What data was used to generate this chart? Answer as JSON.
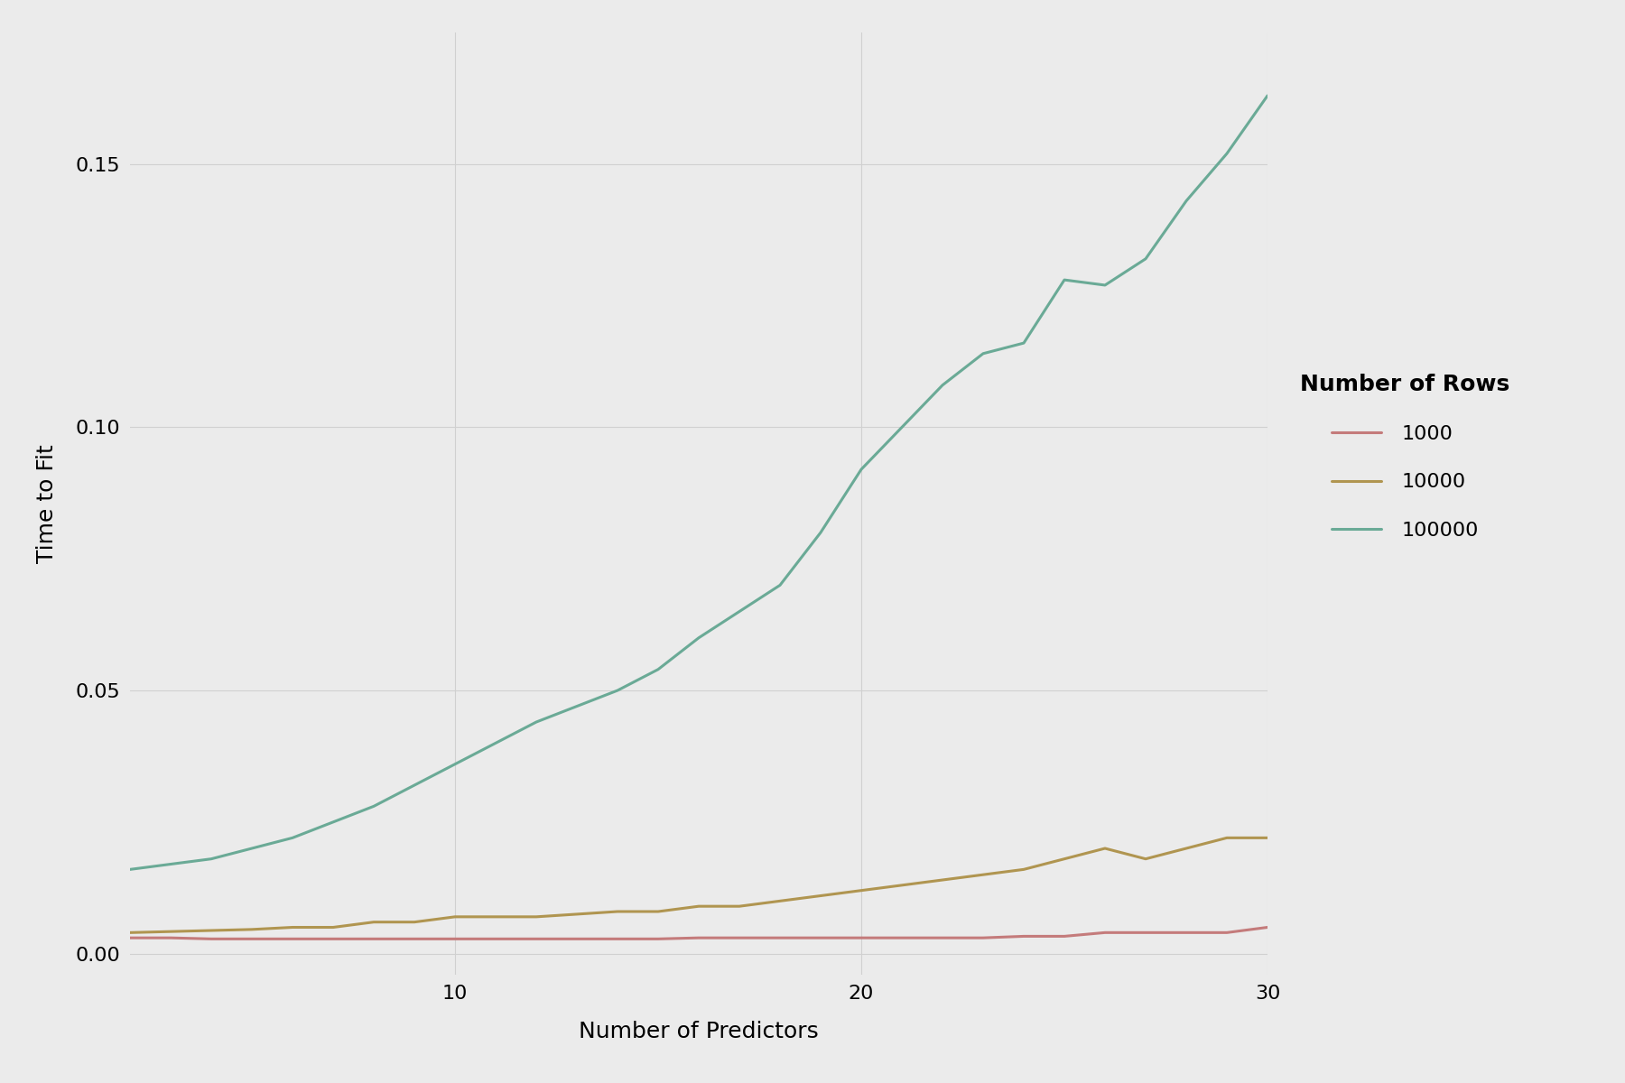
{
  "x": [
    2,
    3,
    4,
    5,
    6,
    7,
    8,
    9,
    10,
    11,
    12,
    13,
    14,
    15,
    16,
    17,
    18,
    19,
    20,
    21,
    22,
    23,
    24,
    25,
    26,
    27,
    28,
    29,
    30
  ],
  "rows_1000": [
    0.003,
    0.003,
    0.0028,
    0.0028,
    0.0028,
    0.0028,
    0.0028,
    0.0028,
    0.0028,
    0.0028,
    0.0028,
    0.0028,
    0.0028,
    0.0028,
    0.003,
    0.003,
    0.003,
    0.003,
    0.003,
    0.003,
    0.003,
    0.003,
    0.0033,
    0.0033,
    0.004,
    0.004,
    0.004,
    0.004,
    0.005
  ],
  "rows_10000": [
    0.004,
    0.0042,
    0.0044,
    0.0046,
    0.005,
    0.005,
    0.006,
    0.006,
    0.007,
    0.007,
    0.007,
    0.0075,
    0.008,
    0.008,
    0.009,
    0.009,
    0.01,
    0.011,
    0.012,
    0.013,
    0.014,
    0.015,
    0.016,
    0.018,
    0.02,
    0.018,
    0.02,
    0.022,
    0.022
  ],
  "rows_100000": [
    0.016,
    0.017,
    0.018,
    0.02,
    0.022,
    0.025,
    0.028,
    0.032,
    0.036,
    0.04,
    0.044,
    0.047,
    0.05,
    0.054,
    0.06,
    0.065,
    0.07,
    0.08,
    0.092,
    0.1,
    0.108,
    0.114,
    0.116,
    0.128,
    0.127,
    0.132,
    0.143,
    0.152,
    0.163
  ],
  "color_1000": "#c47b7b",
  "color_10000": "#b09550",
  "color_100000": "#6aaa96",
  "background_color": "#ebebeb",
  "plot_background": "#ebebeb",
  "xlabel": "Number of Predictors",
  "ylabel": "Time to Fit",
  "legend_title": "Number of Rows",
  "legend_labels": [
    "1000",
    "10000",
    "100000"
  ],
  "ylim": [
    -0.004,
    0.175
  ],
  "xlim": [
    2,
    30
  ],
  "yticks": [
    0.0,
    0.05,
    0.1,
    0.15
  ],
  "xticks": [
    10,
    20,
    30
  ],
  "grid_color": "#d0d0d0",
  "line_width": 2.2,
  "label_fontsize": 18,
  "tick_fontsize": 16,
  "legend_fontsize": 16,
  "legend_title_fontsize": 18
}
